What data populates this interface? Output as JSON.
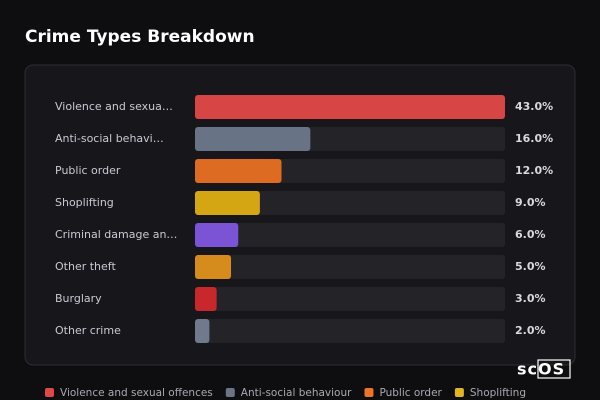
{
  "chart_data": {
    "type": "bar",
    "orientation": "horizontal",
    "title": "Crime Types Breakdown",
    "categories": [
      "Violence and sexua…",
      "Anti-social behavi…",
      "Public order",
      "Shoplifting",
      "Criminal damage an…",
      "Other theft",
      "Burglary",
      "Other crime"
    ],
    "values": [
      43,
      16,
      12,
      9,
      6,
      5,
      3,
      2
    ],
    "value_labels": [
      "43.0%",
      "16.0%",
      "12.0%",
      "9.0%",
      "6.0%",
      "5.0%",
      "3.0%",
      "2.0%"
    ],
    "colors": [
      "#d84545",
      "#687385",
      "#dd6c22",
      "#d4a614",
      "#7b54d6",
      "#d58c1c",
      "#c8282c",
      "#6f7a8c"
    ],
    "xlim": [
      0,
      43
    ],
    "legend": [
      {
        "name": "Violence and sexual offences",
        "color": "#e04848"
      },
      {
        "name": "Anti-social behaviour",
        "color": "#6b7585"
      },
      {
        "name": "Public order",
        "color": "#ec7428"
      },
      {
        "name": "Shoplifting",
        "color": "#e2b520"
      }
    ],
    "watermark": "scOS"
  }
}
